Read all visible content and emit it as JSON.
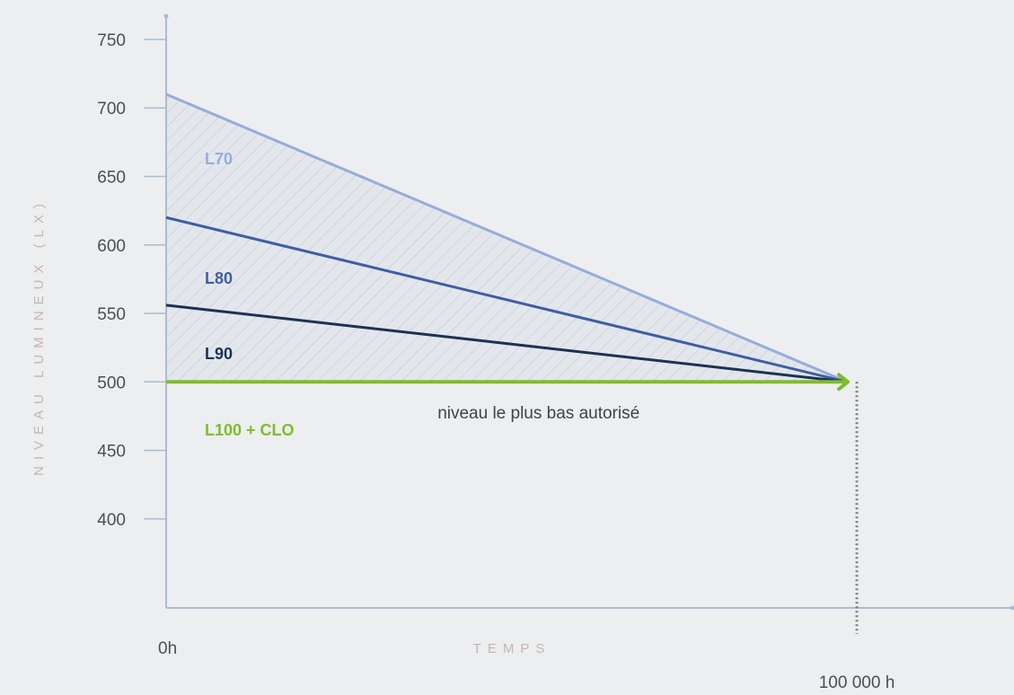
{
  "chart_data": {
    "type": "line",
    "xlabel": "TEMPS",
    "ylabel": "NIVEAU LUMINEUX (LX)",
    "x_tick_labels": {
      "start": "0h",
      "end": "100 000 h"
    },
    "x": [
      0,
      100000
    ],
    "ylim": [
      335,
      767
    ],
    "yticks": [
      400,
      450,
      500,
      550,
      600,
      650,
      700,
      750
    ],
    "grid": false,
    "series": [
      {
        "name": "L70",
        "values": [
          710,
          500
        ],
        "color": "#95addb"
      },
      {
        "name": "L80",
        "values": [
          620,
          500
        ],
        "color": "#3f5ea3"
      },
      {
        "name": "L90",
        "values": [
          556,
          500
        ],
        "color": "#1b3253"
      },
      {
        "name": "L100 + CLO",
        "values": [
          500,
          500
        ],
        "color": "#7fbd2a"
      }
    ],
    "annotations": [
      {
        "text": "niveau le plus bas autorisé",
        "x": 40000,
        "y": 478
      }
    ],
    "colors": {
      "axis": "#a9bdd2",
      "hatch": "#c3cbd6",
      "area_fill": "#e3e7ec",
      "dotted_marker": "#7d7d7d"
    }
  }
}
